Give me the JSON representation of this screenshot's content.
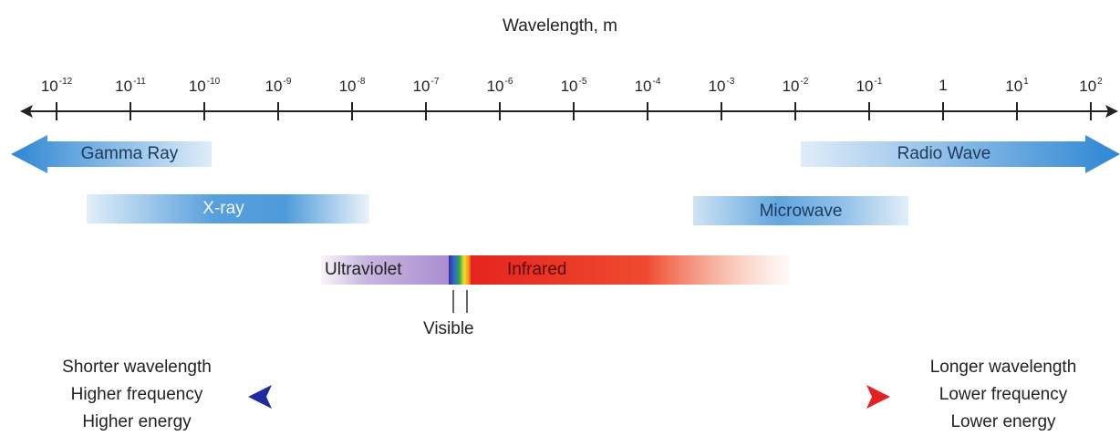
{
  "axis": {
    "title": "Wavelength, m",
    "ticks": [
      {
        "base": "10",
        "exp": "-12"
      },
      {
        "base": "10",
        "exp": "-11"
      },
      {
        "base": "10",
        "exp": "-10"
      },
      {
        "base": "10",
        "exp": "-9"
      },
      {
        "base": "10",
        "exp": "-8"
      },
      {
        "base": "10",
        "exp": "-7"
      },
      {
        "base": "10",
        "exp": "-6"
      },
      {
        "base": "10",
        "exp": "-5"
      },
      {
        "base": "10",
        "exp": "-4"
      },
      {
        "base": "10",
        "exp": "-3"
      },
      {
        "base": "10",
        "exp": "-2"
      },
      {
        "base": "10",
        "exp": "-1"
      },
      {
        "base": "1",
        "exp": ""
      },
      {
        "base": "10",
        "exp": "1"
      },
      {
        "base": "10",
        "exp": "2"
      }
    ]
  },
  "bands": {
    "gamma": "Gamma Ray",
    "radio": "Radio Wave",
    "xray": "X-ray",
    "microwave": "Microwave",
    "ultraviolet": "Ultraviolet",
    "infrared": "Infrared",
    "visible": "Visible"
  },
  "left_side": {
    "line1": "Shorter wavelength",
    "line2": "Higher frequency",
    "line3": "Higher energy"
  },
  "right_side": {
    "line1": "Longer wavelength",
    "line2": "Lower frequency",
    "line3": "Lower energy"
  },
  "colors": {
    "band_blue": "#3a8fd6",
    "band_light": "#cfe3f6",
    "uv_purple": "#b9a3d6",
    "ir_red": "#e5342a",
    "arrow_blue": "#2a2a9a",
    "arrow_red": "#e02020"
  }
}
